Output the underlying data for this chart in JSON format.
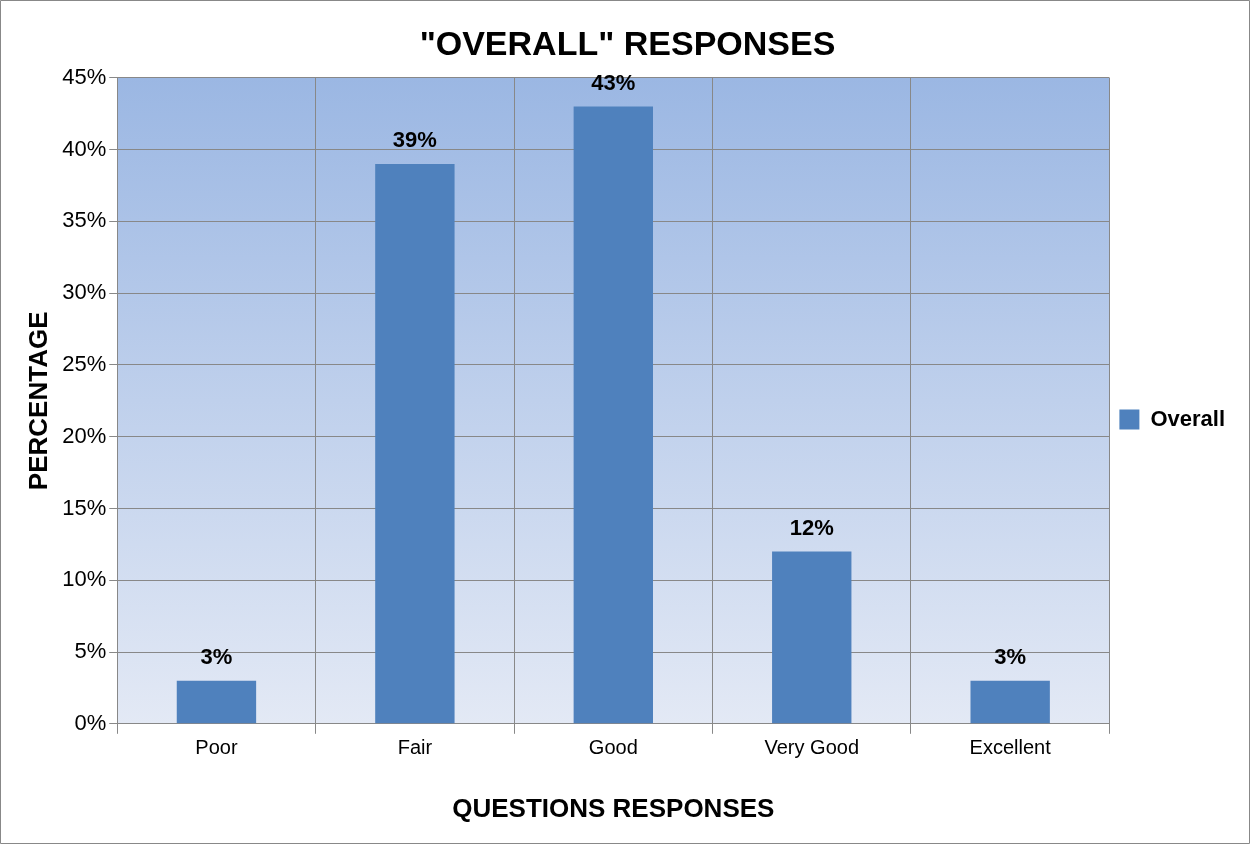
{
  "chart_data": {
    "type": "bar",
    "title": "\"OVERALL\" RESPONSES",
    "xlabel": "QUESTIONS RESPONSES",
    "ylabel": "PERCENTAGE",
    "categories": [
      "Poor",
      "Fair",
      "Good",
      "Very Good",
      "Excellent"
    ],
    "series": [
      {
        "name": "Overall",
        "color": "#4f81bd",
        "values": [
          3,
          39,
          43,
          12,
          3
        ],
        "value_labels": [
          "3%",
          "39%",
          "43%",
          "12%",
          "3%"
        ]
      }
    ],
    "ylim": [
      0,
      45
    ],
    "yticks": [
      {
        "value": 0,
        "label": "0%"
      },
      {
        "value": 5,
        "label": "5%"
      },
      {
        "value": 10,
        "label": "10%"
      },
      {
        "value": 15,
        "label": "15%"
      },
      {
        "value": 20,
        "label": "20%"
      },
      {
        "value": 25,
        "label": "25%"
      },
      {
        "value": 30,
        "label": "30%"
      },
      {
        "value": 35,
        "label": "35%"
      },
      {
        "value": 40,
        "label": "40%"
      },
      {
        "value": 45,
        "label": "45%"
      }
    ],
    "grid": true,
    "legend": "right"
  }
}
